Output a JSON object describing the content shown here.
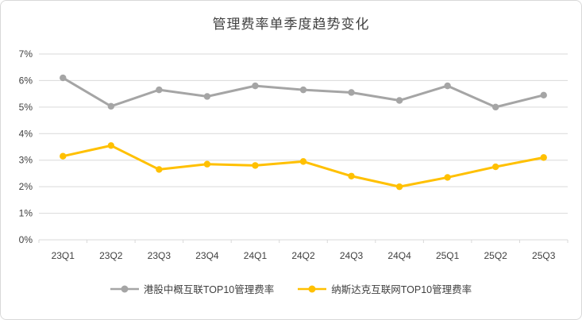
{
  "title": "管理费率单季度趋势变化",
  "chart_data": {
    "type": "line",
    "title": "管理费率单季度趋势变化",
    "categories": [
      "23Q1",
      "23Q2",
      "23Q3",
      "23Q4",
      "24Q1",
      "24Q2",
      "24Q3",
      "24Q4",
      "25Q1",
      "25Q2",
      "25Q3"
    ],
    "series": [
      {
        "name": "港股中概互联TOP10管理费率",
        "color": "#a5a5a5",
        "values": [
          6.1,
          5.03,
          5.65,
          5.4,
          5.8,
          5.65,
          5.55,
          5.25,
          5.8,
          5.0,
          5.45
        ]
      },
      {
        "name": "纳斯达克互联网TOP10管理费率",
        "color": "#ffc000",
        "values": [
          3.15,
          3.55,
          2.65,
          2.85,
          2.8,
          2.95,
          2.4,
          2.0,
          2.35,
          2.75,
          3.1
        ]
      }
    ],
    "ylim": [
      0,
      7
    ],
    "ytick_step": 1,
    "ytick_format": "percent",
    "grid": true,
    "gridline_color": "#d9d9d9",
    "axis_text_color": "#404040",
    "legend_position": "bottom"
  }
}
